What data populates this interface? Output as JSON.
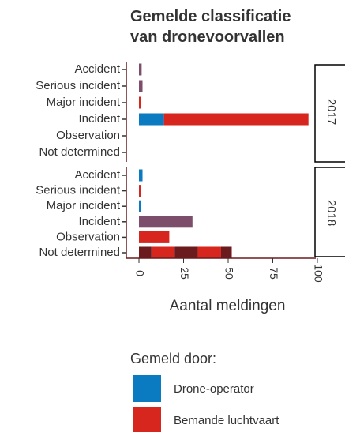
{
  "chart_data": {
    "type": "bar",
    "orientation": "horizontal",
    "stacked": true,
    "title": "Gemelde classificatie van dronevoorvallen",
    "facets": [
      "2017",
      "2018"
    ],
    "categories": [
      "Accident",
      "Serious incident",
      "Major incident",
      "Incident",
      "Observation",
      "Not determined"
    ],
    "series": [
      {
        "name": "Drone-operator",
        "color": "#0a7ac1",
        "values": [
          [
            0,
            0,
            0,
            14,
            0,
            0
          ],
          [
            2,
            0,
            1,
            0,
            0,
            0
          ]
        ]
      },
      {
        "color": "#6b1a1e",
        "values": [
          [
            0,
            0,
            0,
            0,
            0,
            0
          ],
          [
            0,
            0,
            0,
            0,
            0,
            7
          ]
        ]
      },
      {
        "name": "Bemande luchtvaart",
        "color": "#d7261e",
        "values": [
          [
            0,
            0,
            1,
            81,
            0,
            0
          ],
          [
            0,
            1,
            0,
            0,
            17,
            13
          ]
        ]
      },
      {
        "color": "#7d4e6b",
        "values": [
          [
            1.5,
            2,
            0,
            0,
            0,
            0
          ],
          [
            0,
            0,
            0,
            30,
            0,
            0
          ]
        ]
      },
      {
        "color": "#6b1a1e",
        "values": [
          [
            0,
            0,
            0,
            0,
            0,
            0
          ],
          [
            0,
            0,
            0,
            0,
            0,
            13
          ]
        ]
      },
      {
        "color": "#d7261e",
        "values": [
          [
            0,
            0,
            0,
            0,
            0,
            0
          ],
          [
            0,
            0,
            0,
            0,
            0,
            13
          ]
        ]
      },
      {
        "color": "#6b1a1e",
        "values": [
          [
            0,
            0,
            0,
            0,
            0,
            0
          ],
          [
            0,
            0,
            0,
            0,
            0,
            6
          ]
        ]
      }
    ],
    "xlim": [
      0,
      100
    ],
    "xticks": [
      0,
      25,
      50,
      75,
      100
    ],
    "xlabel": "Aantal meldingen",
    "legend_title": "Gemeld door:"
  }
}
